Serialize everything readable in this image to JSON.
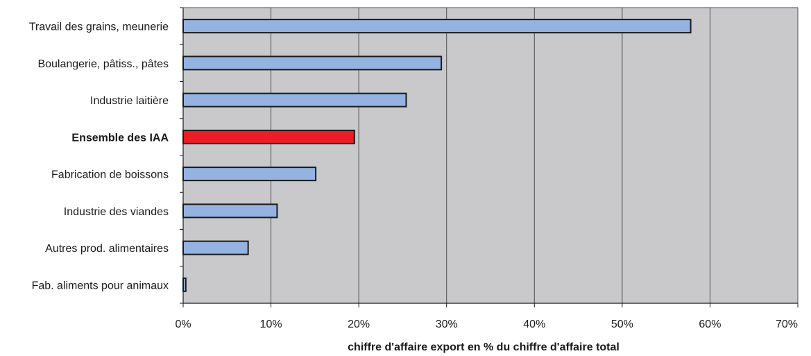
{
  "chart_data": {
    "type": "bar",
    "orientation": "horizontal",
    "categories": [
      "Travail des grains, meunerie",
      "Boulangerie, pâtiss., pâtes",
      "Industrie laitière",
      "Ensemble des IAA",
      "Fabrication de boissons",
      "Industrie des viandes",
      "Autres prod. alimentaires",
      "Fab. aliments pour animaux"
    ],
    "values": [
      57.8,
      29.4,
      25.4,
      19.5,
      15.1,
      10.7,
      7.4,
      0.3
    ],
    "highlight_category": "Ensemble des IAA",
    "bar_color": "#95b3e0",
    "highlight_color": "#ee1c25",
    "plot_background": "#c9c9cc",
    "xlabel": "chiffre d'affaire export en % du chiffre d'affaire total",
    "ylabel": "",
    "title": "",
    "xlim": [
      0,
      70
    ],
    "x_ticks": [
      0,
      10,
      20,
      30,
      40,
      50,
      60,
      70
    ],
    "x_tick_labels": [
      "0%",
      "10%",
      "20%",
      "30%",
      "40%",
      "50%",
      "60%",
      "70%"
    ],
    "grid": "vertical",
    "legend": "none"
  }
}
